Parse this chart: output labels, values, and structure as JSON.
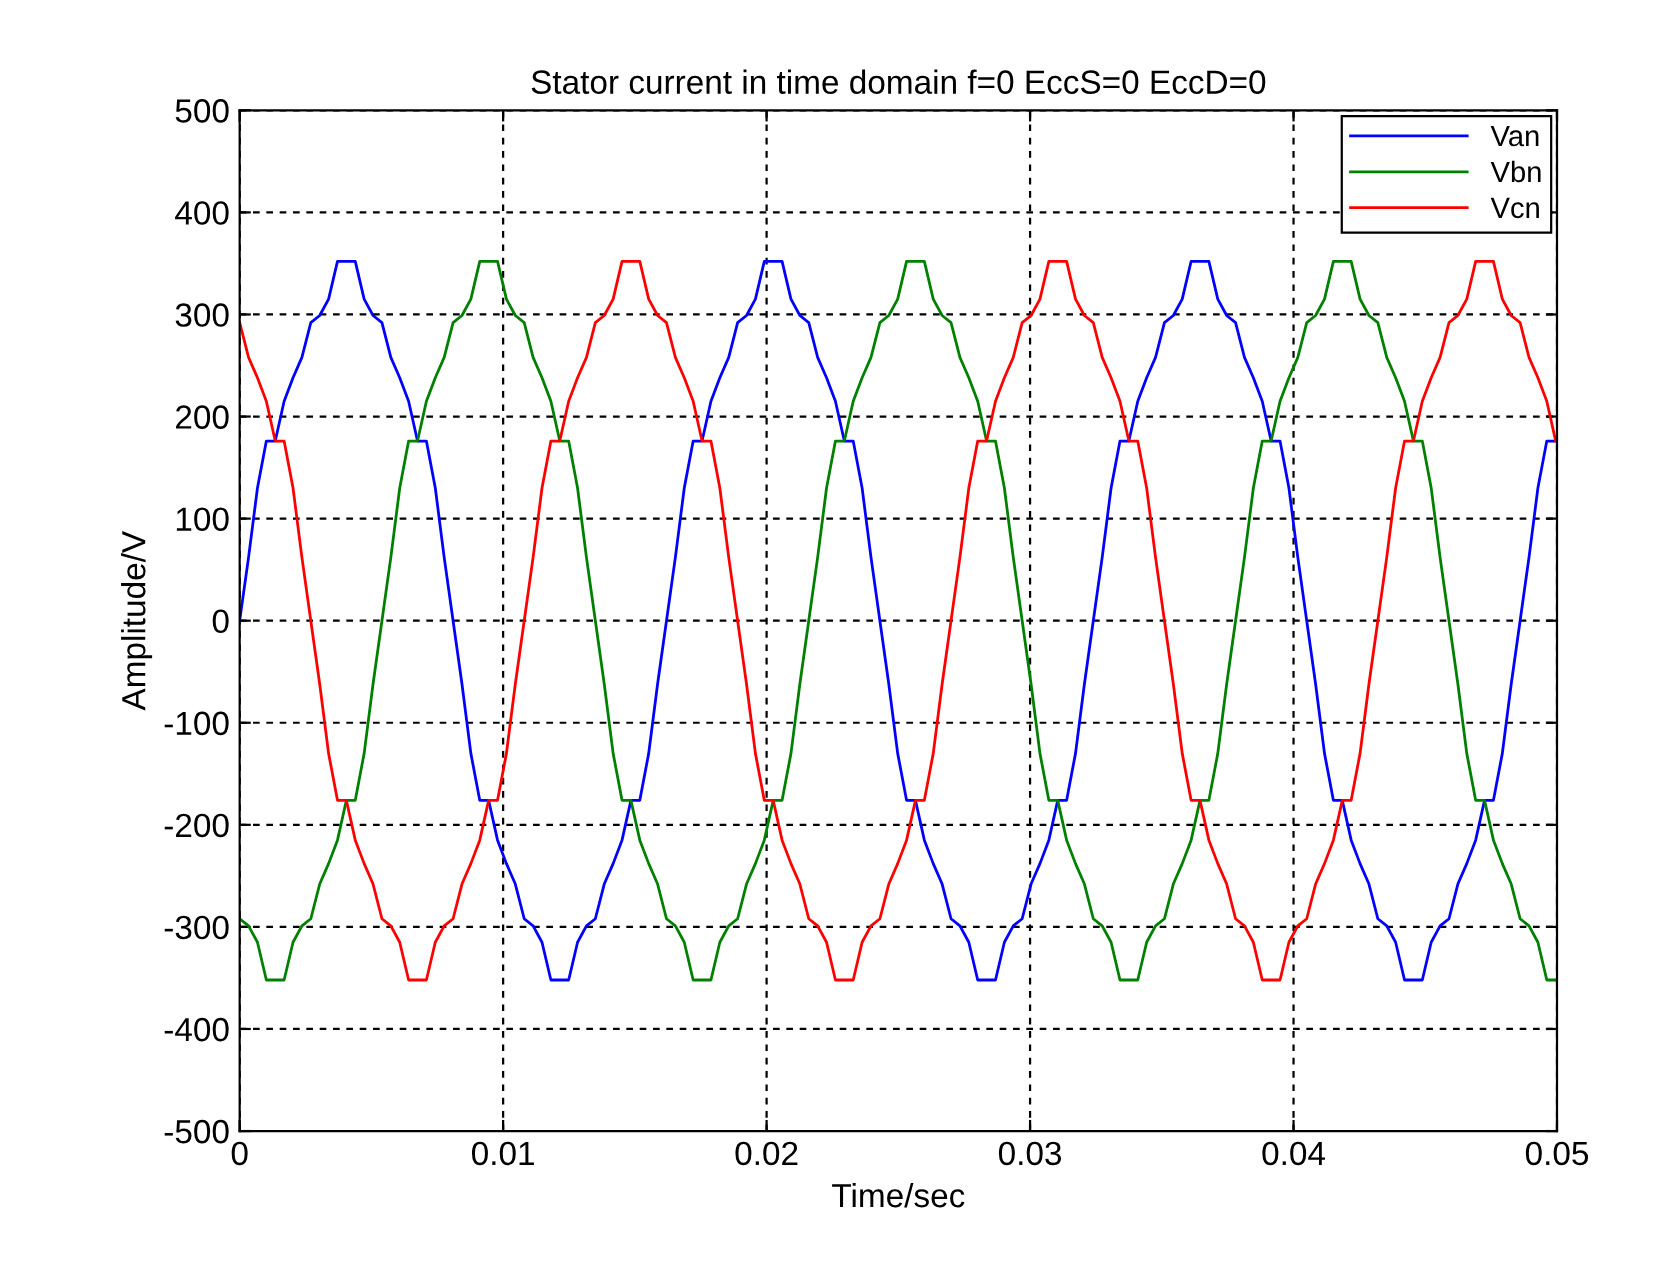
{
  "chart_data": {
    "type": "line",
    "title": "Stator current in time domain f=0 EccS=0 EccD=0",
    "xlabel": "Time/sec",
    "ylabel": "Amplitude/V",
    "x": [
      0,
      0.0003375,
      0.000675,
      0.0010125,
      0.00135,
      0.0016875,
      0.002025,
      0.0023625,
      0.0027,
      0.0030375,
      0.003375,
      0.0037125,
      0.00405,
      0.0043875,
      0.004725,
      0.0050625,
      0.0054,
      0.0057375,
      0.006075,
      0.0064125,
      0.00675,
      0.0070875,
      0.007425,
      0.0077625,
      0.0081,
      0.0084375,
      0.008775,
      0.0091125,
      0.00945,
      0.0097875,
      0.010125,
      0.0104625,
      0.0108,
      0.0111375,
      0.011475,
      0.0118125,
      0.01215,
      0.0124875,
      0.012825,
      0.0131625,
      0.0135,
      0.0138375,
      0.014175,
      0.0145125,
      0.01485,
      0.0151875,
      0.015525,
      0.0158625,
      0.0162,
      0.0165375,
      0.016875,
      0.0172125,
      0.01755,
      0.0178875,
      0.018225,
      0.0185625,
      0.0189,
      0.0192375,
      0.019575,
      0.0199125,
      0.02025,
      0.0205875,
      0.020925,
      0.0212625,
      0.0216,
      0.0219375,
      0.022275,
      0.0226125,
      0.02295,
      0.0232875,
      0.023625,
      0.0239625,
      0.0243,
      0.0246375,
      0.024975,
      0.0253125,
      0.02565,
      0.0259875,
      0.026325,
      0.0266625,
      0.027,
      0.0273375,
      0.027675,
      0.0280125,
      0.02835,
      0.0286875,
      0.029025,
      0.0293625,
      0.0297,
      0.0300375,
      0.030375,
      0.0307125,
      0.03105,
      0.0313875,
      0.031725,
      0.0320625,
      0.0324,
      0.0327375,
      0.033075,
      0.0334125,
      0.03375,
      0.0340875,
      0.034425,
      0.0347625,
      0.0351,
      0.0354375,
      0.035775,
      0.0361125,
      0.03645,
      0.0367875,
      0.037125,
      0.0374625,
      0.0378,
      0.0381375,
      0.038475,
      0.0388125,
      0.03915,
      0.0394875,
      0.039825,
      0.0401625,
      0.0405,
      0.0408375,
      0.041175,
      0.0415125,
      0.04185,
      0.0421875,
      0.042525,
      0.0428625,
      0.0432,
      0.0435375,
      0.043875,
      0.0442125,
      0.04455,
      0.0448875,
      0.045225,
      0.0455625,
      0.0459,
      0.0462375,
      0.046575,
      0.0469125,
      0.04725,
      0.0475875,
      0.047925,
      0.0482625,
      0.0486,
      0.0489375,
      0.049275,
      0.0496125,
      0.04995
    ],
    "series": [
      {
        "name": "Van",
        "color": "#0000ff",
        "values": [
          0,
          62,
          130,
          176,
          176,
          215,
          238,
          258,
          292,
          299,
          315,
          352,
          352,
          352,
          315,
          299,
          292,
          258,
          238,
          215,
          176,
          176,
          130,
          62,
          0,
          -62,
          -130,
          -176,
          -176,
          -215,
          -238,
          -258,
          -292,
          -299,
          -315,
          -352,
          -352,
          -352,
          -315,
          -299,
          -292,
          -258,
          -238,
          -215,
          -176,
          -176,
          -130,
          -62,
          0,
          62,
          130,
          176,
          176,
          215,
          238,
          258,
          292,
          299,
          315,
          352,
          352,
          352,
          315,
          299,
          292,
          258,
          238,
          215,
          176,
          176,
          130,
          62,
          0,
          -62,
          -130,
          -176,
          -176,
          -215,
          -238,
          -258,
          -292,
          -299,
          -315,
          -352,
          -352,
          -352,
          -315,
          -299,
          -292,
          -258,
          -238,
          -215,
          -176,
          -176,
          -130,
          -62,
          0,
          62,
          130,
          176,
          176,
          215,
          238,
          258,
          292,
          299,
          315,
          352,
          352,
          352,
          315,
          299,
          292,
          258,
          238,
          215,
          176,
          176,
          130,
          62,
          0,
          -62,
          -130,
          -176,
          -176,
          -215,
          -238,
          -258,
          -292,
          -299,
          -315,
          -352,
          -352,
          -352,
          -315,
          -299,
          -292,
          -258,
          -238,
          -215,
          -176,
          -176,
          -130,
          -62,
          0,
          62,
          130,
          176,
          176
        ]
      },
      {
        "name": "Vbn",
        "color": "#008000",
        "values": [
          -292,
          -299,
          -315,
          -352,
          -352,
          -352,
          -315,
          -299,
          -292,
          -258,
          -238,
          -215,
          -176,
          -176,
          -130,
          -62,
          0,
          62,
          130,
          176,
          176,
          215,
          238,
          258,
          292,
          299,
          315,
          352,
          352,
          352,
          315,
          299,
          292,
          258,
          238,
          215,
          176,
          176,
          130,
          62,
          0,
          -62,
          -130,
          -176,
          -176,
          -215,
          -238,
          -258,
          -292,
          -299,
          -315,
          -352,
          -352,
          -352,
          -315,
          -299,
          -292,
          -258,
          -238,
          -215,
          -176,
          -176,
          -130,
          -62,
          0,
          62,
          130,
          176,
          176,
          215,
          238,
          258,
          292,
          299,
          315,
          352,
          352,
          352,
          315,
          299,
          292,
          258,
          238,
          215,
          176,
          176,
          130,
          62,
          0,
          -62,
          -130,
          -176,
          -176,
          -215,
          -238,
          -258,
          -292,
          -299,
          -315,
          -352,
          -352,
          -352,
          -315,
          -299,
          -292,
          -258,
          -238,
          -215,
          -176,
          -176,
          -130,
          -62,
          0,
          62,
          130,
          176,
          176,
          215,
          238,
          258,
          292,
          299,
          315,
          352,
          352,
          352,
          315,
          299,
          292,
          258,
          238,
          215,
          176,
          176,
          130,
          62,
          0,
          -62,
          -130,
          -176,
          -176,
          -215,
          -238,
          -258,
          -292,
          -299,
          -315,
          -352,
          -352
        ]
      },
      {
        "name": "Vcn",
        "color": "#ff0000",
        "values": [
          292,
          258,
          238,
          215,
          176,
          176,
          130,
          62,
          0,
          -62,
          -130,
          -176,
          -176,
          -215,
          -238,
          -258,
          -292,
          -299,
          -315,
          -352,
          -352,
          -352,
          -315,
          -299,
          -292,
          -258,
          -238,
          -215,
          -176,
          -176,
          -130,
          -62,
          0,
          62,
          130,
          176,
          176,
          215,
          238,
          258,
          292,
          299,
          315,
          352,
          352,
          352,
          315,
          299,
          292,
          258,
          238,
          215,
          176,
          176,
          130,
          62,
          0,
          -62,
          -130,
          -176,
          -176,
          -215,
          -238,
          -258,
          -292,
          -299,
          -315,
          -352,
          -352,
          -352,
          -315,
          -299,
          -292,
          -258,
          -238,
          -215,
          -176,
          -176,
          -130,
          -62,
          0,
          62,
          130,
          176,
          176,
          215,
          238,
          258,
          292,
          299,
          315,
          352,
          352,
          352,
          315,
          299,
          292,
          258,
          238,
          215,
          176,
          176,
          130,
          62,
          0,
          -62,
          -130,
          -176,
          -176,
          -215,
          -238,
          -258,
          -292,
          -299,
          -315,
          -352,
          -352,
          -352,
          -315,
          -299,
          -292,
          -258,
          -238,
          -215,
          -176,
          -176,
          -130,
          -62,
          0,
          62,
          130,
          176,
          176,
          215,
          238,
          258,
          292,
          299,
          315,
          352,
          352,
          352,
          315,
          299,
          292,
          258,
          238,
          215,
          176
        ]
      }
    ],
    "xlim": [
      0,
      0.05
    ],
    "xticks": [
      0,
      0.01,
      0.02,
      0.03,
      0.04,
      0.05
    ],
    "ylim": [
      -500,
      500
    ],
    "yticks": [
      -500,
      -400,
      -300,
      -200,
      -100,
      0,
      100,
      200,
      300,
      400,
      500
    ],
    "grid": true,
    "legend": "top right",
    "marker": "none",
    "line_style": "solid"
  }
}
